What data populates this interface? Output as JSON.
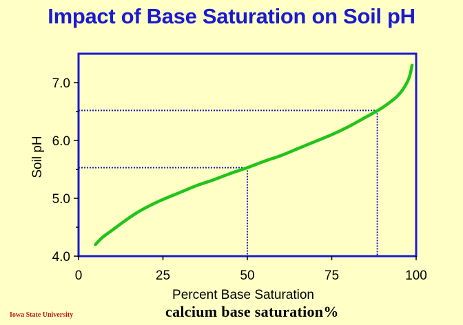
{
  "slide": {
    "title": "Impact of Base Saturation on Soil pH",
    "footer_left": "Iowa State University",
    "footer_center": "calcium base saturation%"
  },
  "colors": {
    "title": "#1a1ad0",
    "axis": "#1a1ad0",
    "curve": "#22c41a",
    "guide": "#1a1ad0",
    "footer_left": "#c01818",
    "text": "#000000"
  },
  "chart_data": {
    "type": "line",
    "title": "Impact of Base Saturation on Soil pH",
    "xlabel": "Percent Base Saturation",
    "ylabel": "Soil pH",
    "xlim": [
      0,
      100
    ],
    "ylim": [
      4.0,
      7.5
    ],
    "x_ticks": [
      0,
      25,
      50,
      75,
      100
    ],
    "x_tick_labels": [
      "0",
      "25",
      "50",
      "75",
      "100"
    ],
    "y_ticks": [
      4.0,
      5.0,
      6.0,
      7.0
    ],
    "y_tick_labels": [
      "4.0",
      "5.0",
      "6.0",
      "7.0"
    ],
    "y_minor_ticks": [
      4.5,
      5.5,
      6.5
    ],
    "grid": false,
    "series": [
      {
        "points": [
          [
            5,
            4.2
          ],
          [
            7,
            4.32
          ],
          [
            10,
            4.45
          ],
          [
            13,
            4.58
          ],
          [
            17,
            4.74
          ],
          [
            21,
            4.87
          ],
          [
            25,
            4.98
          ],
          [
            30,
            5.1
          ],
          [
            35,
            5.22
          ],
          [
            40,
            5.32
          ],
          [
            45,
            5.43
          ],
          [
            50,
            5.53
          ],
          [
            55,
            5.64
          ],
          [
            60,
            5.74
          ],
          [
            65,
            5.86
          ],
          [
            70,
            5.98
          ],
          [
            75,
            6.1
          ],
          [
            80,
            6.24
          ],
          [
            85,
            6.4
          ],
          [
            89,
            6.53
          ],
          [
            92,
            6.65
          ],
          [
            94.5,
            6.77
          ],
          [
            96.5,
            6.92
          ],
          [
            98,
            7.1
          ],
          [
            98.8,
            7.3
          ]
        ]
      }
    ],
    "guides": [
      {
        "x": 50,
        "y": 5.53
      },
      {
        "x": 88.5,
        "y": 6.52
      }
    ]
  }
}
